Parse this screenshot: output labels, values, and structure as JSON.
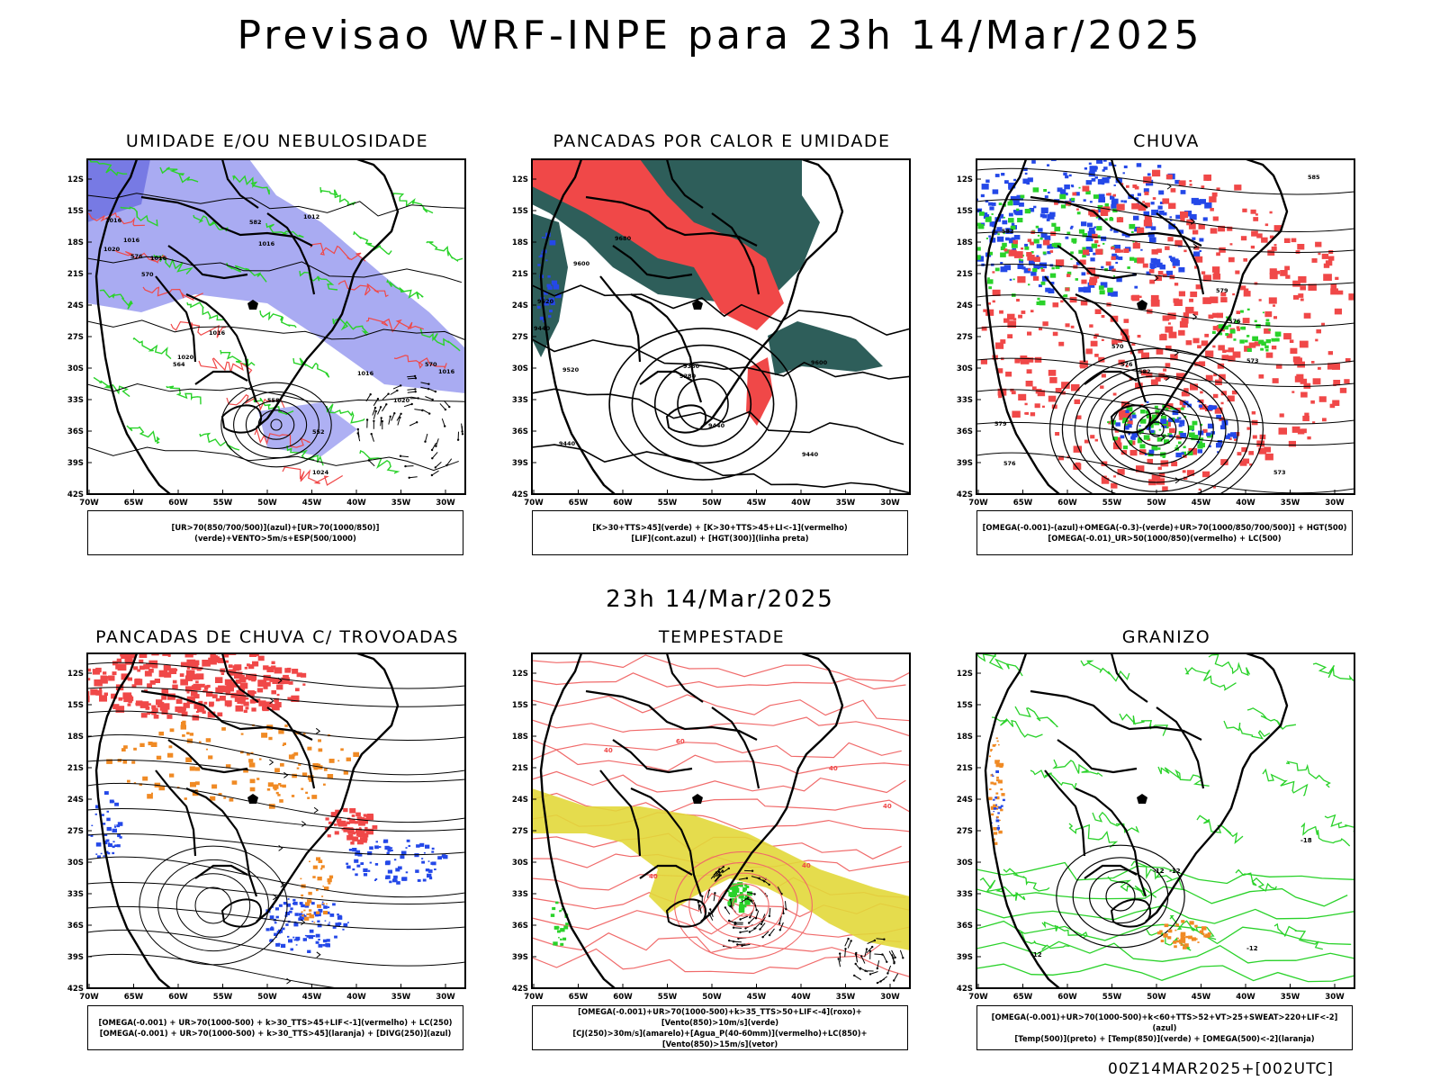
{
  "title": "Previsao WRF-INPE  para 23h 14/Mar/2025",
  "mid_time": "23h 14/Mar/2025",
  "footer": "00Z14MAR2025+[002UTC]",
  "lat_labels": [
    "12S",
    "15S",
    "18S",
    "21S",
    "24S",
    "27S",
    "30S",
    "33S",
    "36S",
    "39S",
    "42S"
  ],
  "lon_labels": [
    "70W",
    "65W",
    "60W",
    "55W",
    "50W",
    "45W",
    "40W",
    "35W",
    "30W"
  ],
  "panels": [
    {
      "title": "UMIDADE E/OU NEBULOSIDADE",
      "legend": [
        "[UR>70(850/700/500)](azul)+[UR>70(1000/850)](verde)+VENTO>5m/s+ESP(500/1000)"
      ]
    },
    {
      "title": "PANCADAS POR CALOR E UMIDADE",
      "legend": [
        "[K>30+TTS>45](verde)  +  [K>30+TTS>45+LI<-1](vermelho)",
        "[LIF](cont.azul)  +  [HGT(300)](linha preta)"
      ]
    },
    {
      "title": "CHUVA",
      "legend": [
        "[OMEGA(-0.001)-(azul)+OMEGA(-0.3)-(verde)+UR>70(1000/850/700/500)]  +  HGT(500)",
        "[OMEGA(-0.01)_UR>50(1000/850)(vermelho)  +  LC(500)"
      ]
    },
    {
      "title": "PANCADAS DE CHUVA C/ TROVOADAS",
      "legend": [
        "[OMEGA(-0.001)  +  UR>70(1000-500)  +  k>30_TTS>45+LIF<-1](vermelho)  +  LC(250)",
        "[OMEGA(-0.001)  +  UR>70(1000-500)  +  k>30_TTS>45](laranja)  +  [DIVG(250)](azul)"
      ]
    },
    {
      "title": "TEMPESTADE",
      "legend": [
        "[OMEGA(-0.001)+UR>70(1000-500)+k>35_TTS>50+LIF<-4](roxo)+[Vento(850)>10m/s](verde)",
        "[CJ(250)>30m/s](amarelo)+[Agua_P(40-60mm)](vermelho)+LC(850)+[Vento(850)>15m/s](vetor)"
      ]
    },
    {
      "title": "GRANIZO",
      "legend": [
        "[OMEGA(-0.001)+UR>70(1000-500)+k<60+TTS>52+VT>25+SWEAT>220+LIF<-2](azul)",
        "[Temp(500)](preto)  +  [Temp(850)](verde)  +  [OMEGA(500)<-2](laranja)"
      ]
    }
  ],
  "contour_labels": {
    "p1": [
      "1016",
      "1012",
      "1016",
      "1020",
      "1016",
      "1016",
      "1020",
      "1016",
      "1016",
      "1020",
      "1016",
      "1024",
      "570",
      "564",
      "558",
      "552",
      "570",
      "576",
      "582"
    ],
    "p2": [
      "9680",
      "9600",
      "9520",
      "9440",
      "9520",
      "9440",
      "9360",
      "9280",
      "9440",
      "9600",
      "9440"
    ],
    "p3": [
      "585",
      "582",
      "579",
      "576",
      "573",
      "570",
      "576",
      "582",
      "579",
      "576",
      "573"
    ],
    "p5": [
      "40",
      "40",
      "40",
      "60",
      "40",
      "40"
    ],
    "p6": [
      "-12",
      "-12",
      "-12",
      "-18",
      "-12"
    ]
  },
  "colors": {
    "red": "#f04848",
    "green": "#2ad22a",
    "blue": "#2448e8",
    "lightblue": "#9a9cf0",
    "darkteal": "#2e5e5a",
    "orange": "#f08a24",
    "yellow": "#e2d83a",
    "salmon": "#f06a6a"
  }
}
